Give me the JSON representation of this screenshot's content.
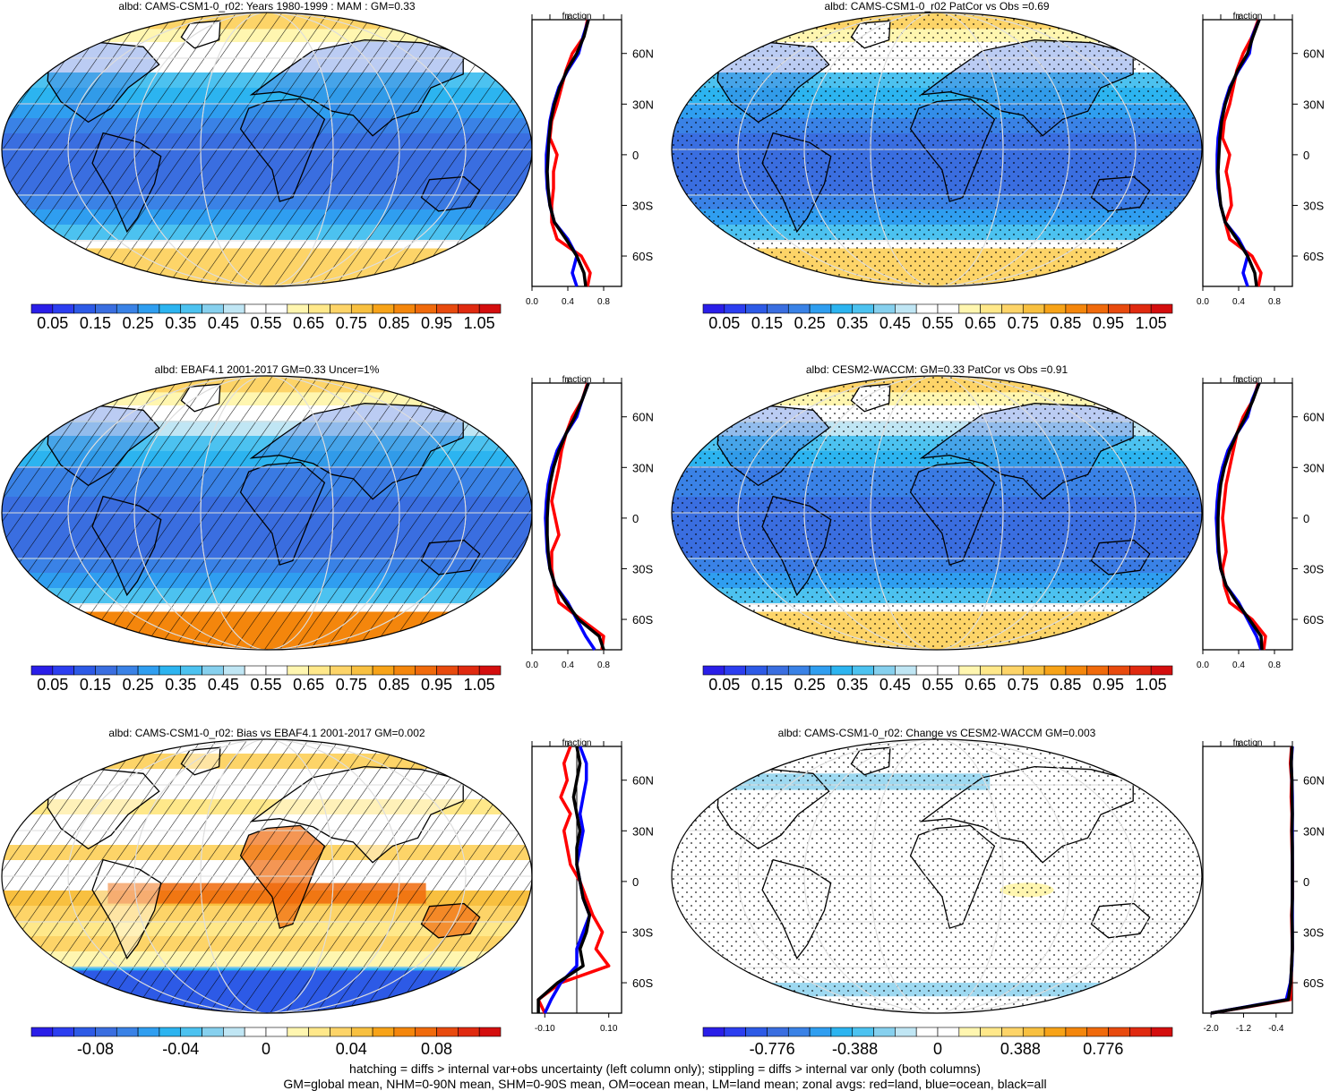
{
  "chart_data": [
    {
      "type": "heatmap",
      "title": "albd: CAMS-CSM1-0_r02: Years 1980-1999 : MAM : GM=0.33",
      "variable": "albd",
      "global_mean": 0.33,
      "projection": "Robinson",
      "colorbar": {
        "ticks": [
          "0.05",
          "0.15",
          "0.25",
          "0.35",
          "0.45",
          "0.55",
          "0.65",
          "0.75",
          "0.85",
          "0.95",
          "1.05"
        ],
        "range": [
          0,
          1.1
        ],
        "colors": "blue-white-red"
      },
      "overlay": "hatching",
      "zonal": {
        "ylabel": "fraction",
        "yticks": [
          "60N",
          "30N",
          "0",
          "30S",
          "60S"
        ],
        "xticks": [
          "0.0",
          "0.4",
          "0.8"
        ],
        "xlim": [
          0,
          1.0
        ],
        "lat": [
          80,
          70,
          60,
          50,
          40,
          30,
          20,
          10,
          0,
          -10,
          -20,
          -30,
          -40,
          -50,
          -60,
          -70,
          -78
        ],
        "series": [
          {
            "name": "land",
            "color": "#ff0000",
            "values": [
              0.62,
              0.58,
              0.45,
              0.38,
              0.33,
              0.28,
              0.22,
              0.2,
              0.28,
              0.24,
              0.24,
              0.22,
              0.22,
              0.28,
              0.55,
              0.65,
              0.62
            ]
          },
          {
            "name": "ocean",
            "color": "#0000ff",
            "values": [
              0.63,
              0.57,
              0.52,
              0.4,
              0.3,
              0.24,
              0.2,
              0.18,
              0.16,
              0.16,
              0.17,
              0.2,
              0.25,
              0.4,
              0.5,
              0.45,
              0.5
            ]
          },
          {
            "name": "all",
            "color": "#000000",
            "values": [
              0.63,
              0.58,
              0.5,
              0.39,
              0.31,
              0.25,
              0.21,
              0.19,
              0.18,
              0.17,
              0.18,
              0.2,
              0.25,
              0.38,
              0.5,
              0.58,
              0.6
            ]
          }
        ]
      }
    },
    {
      "type": "heatmap",
      "title": "albd: CAMS-CSM1-0_r02 PatCor vs Obs =0.69",
      "variable": "albd",
      "pattern_correlation": 0.69,
      "projection": "Robinson",
      "colorbar": {
        "ticks": [
          "0.05",
          "0.15",
          "0.25",
          "0.35",
          "0.45",
          "0.55",
          "0.65",
          "0.75",
          "0.85",
          "0.95",
          "1.05"
        ],
        "range": [
          0,
          1.1
        ],
        "colors": "blue-white-red"
      },
      "overlay": "stippling",
      "zonal": {
        "ylabel": "fraction",
        "yticks": [
          "60N",
          "30N",
          "0",
          "30S",
          "60S"
        ],
        "xticks": [
          "0.0",
          "0.4",
          "0.8"
        ],
        "xlim": [
          0,
          1.0
        ],
        "lat": [
          80,
          70,
          60,
          50,
          40,
          30,
          20,
          10,
          0,
          -10,
          -20,
          -30,
          -40,
          -50,
          -60,
          -70,
          -78
        ],
        "series": [
          {
            "name": "land",
            "color": "#ff0000",
            "values": [
              0.62,
              0.55,
              0.45,
              0.38,
              0.34,
              0.3,
              0.24,
              0.22,
              0.3,
              0.26,
              0.3,
              0.32,
              0.25,
              0.3,
              0.55,
              0.65,
              0.62
            ]
          },
          {
            "name": "ocean",
            "color": "#0000ff",
            "values": [
              0.63,
              0.55,
              0.52,
              0.4,
              0.3,
              0.24,
              0.2,
              0.17,
              0.16,
              0.16,
              0.17,
              0.2,
              0.25,
              0.4,
              0.5,
              0.45,
              0.5
            ]
          },
          {
            "name": "all",
            "color": "#000000",
            "values": [
              0.63,
              0.56,
              0.5,
              0.39,
              0.31,
              0.25,
              0.21,
              0.19,
              0.18,
              0.17,
              0.18,
              0.2,
              0.25,
              0.38,
              0.5,
              0.58,
              0.6
            ]
          }
        ]
      }
    },
    {
      "type": "heatmap",
      "title": "albd: EBAF4.1 2001-2017 GM=0.33 Uncer=1%",
      "variable": "albd",
      "global_mean": 0.33,
      "uncertainty": "1%",
      "projection": "Robinson",
      "colorbar": {
        "ticks": [
          "0.05",
          "0.15",
          "0.25",
          "0.35",
          "0.45",
          "0.55",
          "0.65",
          "0.75",
          "0.85",
          "0.95",
          "1.05"
        ],
        "range": [
          0,
          1.1
        ],
        "colors": "blue-white-red"
      },
      "overlay": "hatching",
      "zonal": {
        "ylabel": "fraction",
        "yticks": [
          "60N",
          "30N",
          "0",
          "30S",
          "60S"
        ],
        "xticks": [
          "0.0",
          "0.4",
          "0.8"
        ],
        "xlim": [
          0,
          1.0
        ],
        "lat": [
          80,
          70,
          60,
          50,
          40,
          30,
          20,
          10,
          0,
          -10,
          -20,
          -30,
          -40,
          -50,
          -60,
          -70,
          -78
        ],
        "series": [
          {
            "name": "land",
            "color": "#ff0000",
            "values": [
              0.62,
              0.56,
              0.45,
              0.38,
              0.33,
              0.3,
              0.26,
              0.22,
              0.26,
              0.3,
              0.22,
              0.22,
              0.25,
              0.3,
              0.55,
              0.8,
              0.78
            ]
          },
          {
            "name": "ocean",
            "color": "#0000ff",
            "values": [
              0.63,
              0.56,
              0.5,
              0.38,
              0.28,
              0.22,
              0.18,
              0.16,
              0.15,
              0.16,
              0.17,
              0.2,
              0.26,
              0.4,
              0.5,
              0.6,
              0.7
            ]
          },
          {
            "name": "all",
            "color": "#000000",
            "values": [
              0.63,
              0.56,
              0.48,
              0.38,
              0.3,
              0.24,
              0.2,
              0.18,
              0.17,
              0.17,
              0.18,
              0.2,
              0.26,
              0.38,
              0.52,
              0.75,
              0.8
            ]
          }
        ]
      }
    },
    {
      "type": "heatmap",
      "title": "albd: CESM2-WACCM: GM=0.33 PatCor vs Obs =0.91",
      "variable": "albd",
      "global_mean": 0.33,
      "pattern_correlation": 0.91,
      "projection": "Robinson",
      "colorbar": {
        "ticks": [
          "0.05",
          "0.15",
          "0.25",
          "0.35",
          "0.45",
          "0.55",
          "0.65",
          "0.75",
          "0.85",
          "0.95",
          "1.05"
        ],
        "range": [
          0,
          1.1
        ],
        "colors": "blue-white-red"
      },
      "overlay": "stippling",
      "zonal": {
        "ylabel": "fraction",
        "yticks": [
          "60N",
          "30N",
          "0",
          "30S",
          "60S"
        ],
        "xticks": [
          "0.0",
          "0.4",
          "0.8"
        ],
        "xlim": [
          0,
          1.0
        ],
        "lat": [
          80,
          70,
          60,
          50,
          40,
          30,
          20,
          10,
          0,
          -10,
          -20,
          -30,
          -40,
          -50,
          -60,
          -70,
          -78
        ],
        "series": [
          {
            "name": "land",
            "color": "#ff0000",
            "values": [
              0.62,
              0.56,
              0.45,
              0.38,
              0.34,
              0.3,
              0.26,
              0.24,
              0.22,
              0.24,
              0.26,
              0.22,
              0.24,
              0.3,
              0.55,
              0.7,
              0.68
            ]
          },
          {
            "name": "ocean",
            "color": "#0000ff",
            "values": [
              0.63,
              0.55,
              0.5,
              0.38,
              0.28,
              0.22,
              0.18,
              0.16,
              0.15,
              0.16,
              0.17,
              0.2,
              0.26,
              0.4,
              0.5,
              0.6,
              0.65
            ]
          },
          {
            "name": "all",
            "color": "#000000",
            "values": [
              0.63,
              0.56,
              0.48,
              0.38,
              0.3,
              0.24,
              0.2,
              0.18,
              0.17,
              0.17,
              0.18,
              0.2,
              0.26,
              0.38,
              0.52,
              0.65,
              0.66
            ]
          }
        ]
      }
    },
    {
      "type": "heatmap",
      "title": "albd: CAMS-CSM1-0_r02: Bias vs EBAF4.1 2001-2017 GM=0.002",
      "variable": "albd",
      "global_mean": 0.002,
      "projection": "Robinson",
      "colorbar": {
        "ticks": [
          "-0.08",
          "-0.04",
          "0",
          "0.04",
          "0.08"
        ],
        "range": [
          -0.11,
          0.11
        ],
        "colors": "blue-white-red"
      },
      "overlay": "hatching",
      "zonal": {
        "ylabel": "fraction",
        "yticks": [
          "60N",
          "30N",
          "0",
          "30S",
          "60S"
        ],
        "xticks": [
          "-0.10",
          "0.10"
        ],
        "xlim": [
          -0.14,
          0.14
        ],
        "lat": [
          80,
          70,
          60,
          50,
          40,
          30,
          20,
          10,
          0,
          -10,
          -20,
          -30,
          -40,
          -50,
          -60,
          -70,
          -78
        ],
        "series": [
          {
            "name": "land",
            "color": "#ff0000",
            "values": [
              -0.02,
              -0.04,
              -0.03,
              -0.05,
              -0.02,
              -0.04,
              -0.03,
              -0.02,
              0.01,
              0.03,
              0.05,
              0.08,
              0.06,
              0.1,
              -0.05,
              -0.12,
              -0.1
            ]
          },
          {
            "name": "ocean",
            "color": "#0000ff",
            "values": [
              0.01,
              0.03,
              0.03,
              0.02,
              0.01,
              0.02,
              0.01,
              0.0,
              0.01,
              0.02,
              0.04,
              0.02,
              0.0,
              0.0,
              -0.05,
              -0.08,
              -0.1
            ]
          },
          {
            "name": "all",
            "color": "#000000",
            "values": [
              0.0,
              0.01,
              0.0,
              -0.01,
              0.0,
              0.01,
              0.0,
              0.0,
              0.01,
              0.02,
              0.04,
              0.03,
              0.01,
              0.02,
              -0.06,
              -0.12,
              -0.12
            ]
          }
        ]
      }
    },
    {
      "type": "heatmap",
      "title": "albd: CAMS-CSM1-0_r02: Change vs CESM2-WACCM GM=0.003",
      "variable": "albd",
      "global_mean": 0.003,
      "projection": "Robinson",
      "colorbar": {
        "ticks": [
          "-0.776",
          "-0.388",
          "0",
          "0.388",
          "0.776"
        ],
        "range": [
          -1.1,
          1.1
        ],
        "colors": "blue-white-red"
      },
      "overlay": "stippling",
      "zonal": {
        "ylabel": "fraction",
        "yticks": [
          "60N",
          "30N",
          "0",
          "30S",
          "60S"
        ],
        "xticks": [
          "-2.0",
          "-1.2",
          "-0.4"
        ],
        "xlim": [
          -2.2,
          0.0
        ],
        "lat": [
          80,
          70,
          60,
          50,
          40,
          30,
          20,
          10,
          0,
          -10,
          -20,
          -30,
          -40,
          -50,
          -60,
          -70,
          -78
        ],
        "series": [
          {
            "name": "land",
            "color": "#ff0000",
            "values": [
              -0.02,
              -0.05,
              -0.02,
              -0.03,
              -0.01,
              -0.02,
              -0.01,
              0.0,
              0.0,
              0.0,
              -0.02,
              -0.01,
              0.0,
              -0.02,
              -0.03,
              -0.05,
              -2.0
            ]
          },
          {
            "name": "ocean",
            "color": "#0000ff",
            "values": [
              0.0,
              -0.03,
              -0.01,
              0.0,
              0.0,
              0.0,
              0.0,
              0.0,
              0.0,
              0.0,
              0.0,
              0.0,
              0.0,
              -0.01,
              -0.05,
              -0.15,
              -2.0
            ]
          },
          {
            "name": "all",
            "color": "#000000",
            "values": [
              -0.01,
              -0.03,
              -0.01,
              -0.01,
              0.0,
              -0.01,
              0.0,
              0.0,
              0.0,
              0.0,
              -0.01,
              0.0,
              0.0,
              -0.02,
              -0.04,
              -0.1,
              -2.0
            ]
          }
        ]
      }
    }
  ],
  "footer": {
    "line1": "hatching = diffs > internal var+obs uncertainty (left column only); stippling = diffs > internal var only (both columns)",
    "line2": "GM=global mean, NHM=0-90N mean, SHM=0-90S mean, OM=ocean mean, LM=land mean; zonal avgs: red=land, blue=ocean, black=all"
  }
}
